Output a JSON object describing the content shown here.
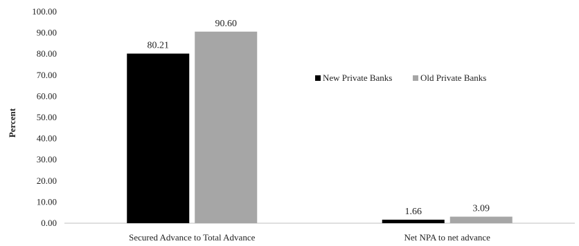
{
  "chart_data": {
    "type": "bar",
    "title": "",
    "xlabel": "",
    "ylabel": "Percent",
    "ylim": [
      0,
      100
    ],
    "yticks": [
      "0.00",
      "10.00",
      "20.00",
      "30.00",
      "40.00",
      "50.00",
      "60.00",
      "70.00",
      "80.00",
      "90.00",
      "100.00"
    ],
    "categories": [
      "Secured Advance to Total Advance",
      "Net NPA to net advance"
    ],
    "series": [
      {
        "name": "New Private Banks",
        "values": [
          80.21,
          1.66
        ],
        "labels": [
          "80.21",
          "1.66"
        ],
        "color": "#000000"
      },
      {
        "name": "Old Private Banks",
        "values": [
          90.6,
          3.09
        ],
        "labels": [
          "90.60",
          "3.09"
        ],
        "color": "#a6a6a6"
      }
    ],
    "grid": false,
    "legend": "top-right"
  }
}
